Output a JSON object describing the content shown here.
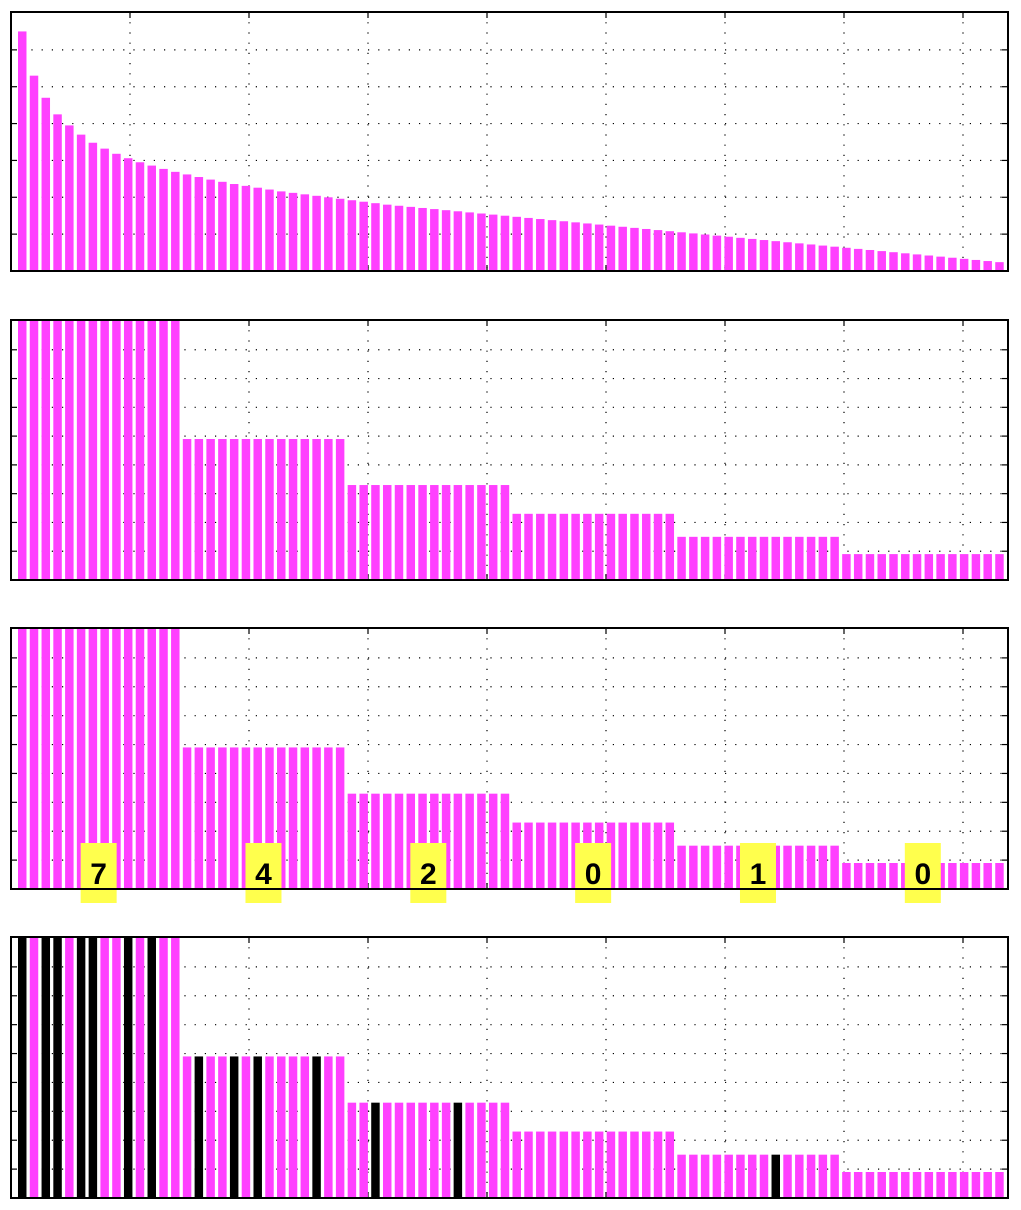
{
  "chart_data": [
    {
      "type": "bar",
      "panel": "decaying-values",
      "ylim": [
        0,
        7
      ],
      "grid": true,
      "color": "#ff40ff",
      "values": [
        6.5,
        5.3,
        4.7,
        4.25,
        3.95,
        3.7,
        3.48,
        3.32,
        3.18,
        3.06,
        2.95,
        2.86,
        2.77,
        2.69,
        2.62,
        2.55,
        2.48,
        2.42,
        2.36,
        2.31,
        2.26,
        2.21,
        2.16,
        2.12,
        2.08,
        2.04,
        2.0,
        1.96,
        1.92,
        1.88,
        1.84,
        1.8,
        1.77,
        1.74,
        1.71,
        1.68,
        1.65,
        1.62,
        1.59,
        1.56,
        1.53,
        1.5,
        1.47,
        1.44,
        1.41,
        1.38,
        1.35,
        1.32,
        1.29,
        1.26,
        1.23,
        1.2,
        1.17,
        1.14,
        1.11,
        1.08,
        1.05,
        1.02,
        0.99,
        0.96,
        0.93,
        0.9,
        0.87,
        0.84,
        0.81,
        0.78,
        0.75,
        0.72,
        0.69,
        0.66,
        0.63,
        0.6,
        0.57,
        0.54,
        0.51,
        0.48,
        0.45,
        0.42,
        0.39,
        0.36,
        0.33,
        0.3,
        0.27,
        0.24
      ]
    },
    {
      "type": "bar",
      "panel": "quantized-levels",
      "ylim": [
        0,
        9
      ],
      "grid": true,
      "color": "#ff40ff",
      "groups": [
        {
          "count": 14,
          "value": 9.0
        },
        {
          "count": 14,
          "value": 4.9
        },
        {
          "count": 14,
          "value": 3.3
        },
        {
          "count": 14,
          "value": 2.3
        },
        {
          "count": 14,
          "value": 1.5
        },
        {
          "count": 14,
          "value": 0.9
        }
      ]
    },
    {
      "type": "bar",
      "panel": "quantized-levels-annotated",
      "ylim": [
        0,
        9
      ],
      "grid": true,
      "color": "#ff40ff",
      "groups": [
        {
          "count": 14,
          "value": 9.0
        },
        {
          "count": 14,
          "value": 4.9
        },
        {
          "count": 14,
          "value": 3.3
        },
        {
          "count": 14,
          "value": 2.3
        },
        {
          "count": 14,
          "value": 1.5
        },
        {
          "count": 14,
          "value": 0.9
        }
      ],
      "annotations": [
        "7",
        "4",
        "2",
        "0",
        "1",
        "0"
      ],
      "annotation_color": "#ffff4d"
    },
    {
      "type": "bar",
      "panel": "quantized-levels-selected",
      "ylim": [
        0,
        9
      ],
      "grid": true,
      "color": "#ff40ff",
      "highlight_color": "#000000",
      "groups": [
        {
          "count": 14,
          "value": 9.0
        },
        {
          "count": 14,
          "value": 4.9
        },
        {
          "count": 14,
          "value": 3.3
        },
        {
          "count": 14,
          "value": 2.3
        },
        {
          "count": 14,
          "value": 1.5
        },
        {
          "count": 14,
          "value": 0.9
        }
      ],
      "selected_bars": [
        0,
        2,
        3,
        5,
        6,
        9,
        11,
        15,
        18,
        20,
        25,
        30,
        37,
        64
      ]
    }
  ]
}
